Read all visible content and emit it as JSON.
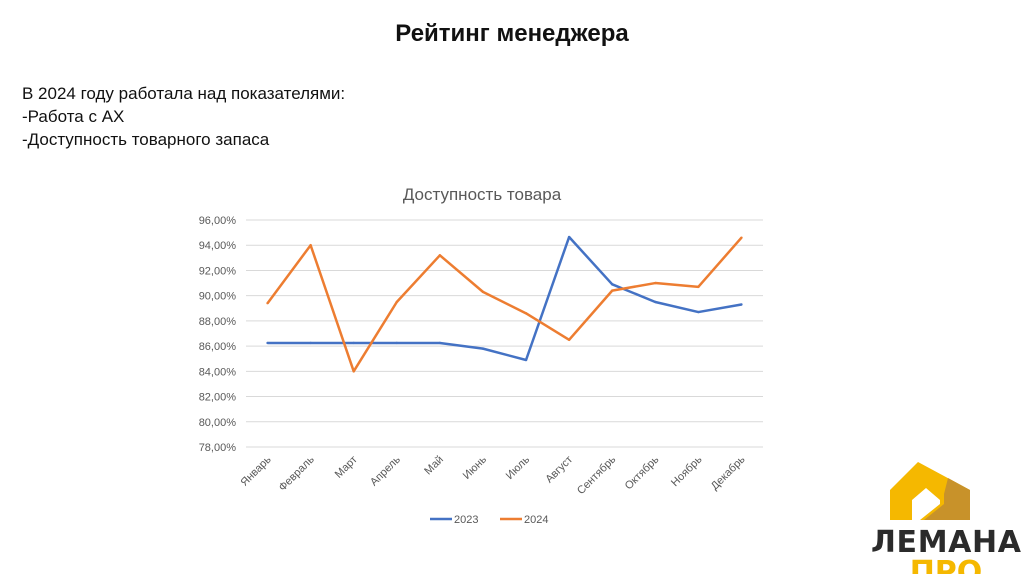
{
  "page": {
    "title": "Рейтинг менеджера",
    "intro": [
      "В 2024 году работала над показателями:",
      "-Работа с АХ",
      "-Доступность товарного запаса"
    ]
  },
  "logo": {
    "line1": "ЛЕМАНА",
    "line2": "ПРО",
    "colors": {
      "yellow": "#f5b800",
      "brown": "#c8922a",
      "dark": "#2b2b2b"
    }
  },
  "chart_data": {
    "type": "line",
    "title": "Доступность товара",
    "xlabel": "",
    "ylabel": "",
    "categories": [
      "Январь",
      "Февраль",
      "Март",
      "Апрель",
      "Май",
      "Июнь",
      "Июль",
      "Август",
      "Сентябрь",
      "Октябрь",
      "Ноябрь",
      "Декабрь"
    ],
    "ylim": [
      78,
      96
    ],
    "yticks": [
      "96,00%",
      "94,00%",
      "92,00%",
      "90,00%",
      "88,00%",
      "86,00%",
      "84,00%",
      "82,00%",
      "80,00%",
      "78,00%"
    ],
    "grid": true,
    "legend": "bottom",
    "series": [
      {
        "name": "2023",
        "color": "#4472c4",
        "values": [
          86.25,
          86.25,
          86.25,
          86.25,
          86.25,
          85.8,
          84.9,
          94.65,
          90.9,
          89.5,
          88.7,
          89.3
        ]
      },
      {
        "name": "2024",
        "color": "#ed7d31",
        "values": [
          89.4,
          94.0,
          84.0,
          89.5,
          93.2,
          90.3,
          88.6,
          86.5,
          90.4,
          91.0,
          90.7,
          94.6
        ]
      }
    ]
  }
}
